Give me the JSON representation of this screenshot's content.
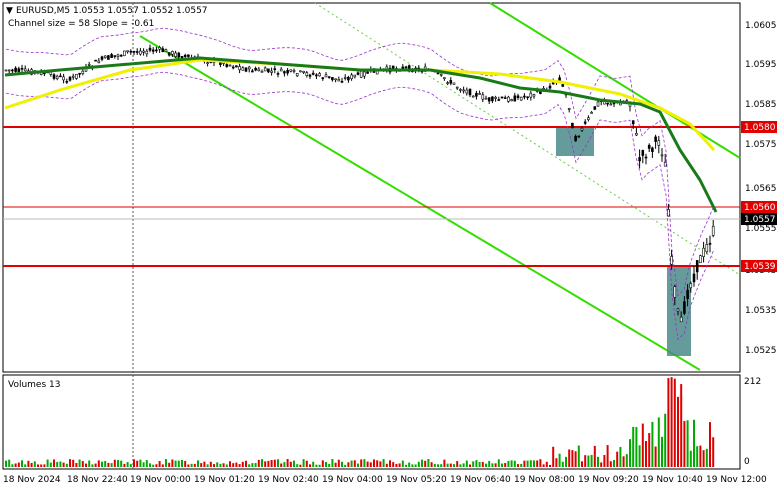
{
  "header": {
    "symbol_line": "EURUSD,M5  1.0553 1.0557 1.0552 1.0557",
    "channel_line": "Channel size = 58 Slope = -0.61"
  },
  "volumes_panel": {
    "label": "Volumes 13",
    "scale_top": "212",
    "scale_bottom": "0"
  },
  "price_axis": {
    "ticks": [
      "1.0605",
      "1.0595",
      "1.0585",
      "1.0575",
      "1.0565",
      "1.0555",
      "1.0545",
      "1.0535",
      "1.0525"
    ]
  },
  "time_axis": {
    "labels": [
      "18 Nov 2024",
      "18 Nov 22:40",
      "19 Nov 00:00",
      "19 Nov 01:20",
      "19 Nov 02:40",
      "19 Nov 04:00",
      "19 Nov 05:20",
      "19 Nov 06:40",
      "19 Nov 08:00",
      "19 Nov 09:20",
      "19 Nov 10:40",
      "19 Nov 12:00"
    ]
  },
  "levels": [
    {
      "label": "1.0580",
      "color": "#e00000"
    },
    {
      "label": "1.0560",
      "color": "#e00000"
    },
    {
      "label": "1.0539",
      "color": "#e00000"
    }
  ],
  "current_price": {
    "label": "1.0557",
    "color": "#000000"
  },
  "colors": {
    "up_candle": "#000000",
    "ma_fast": "#1a7a1a",
    "ma_slow": "#f0f000",
    "channel": "#33dd00",
    "envelope": "#9933cc",
    "volume_up": "#00aa00",
    "volume_down": "#dd0000",
    "highlight_box": "#4a8a8a"
  }
}
